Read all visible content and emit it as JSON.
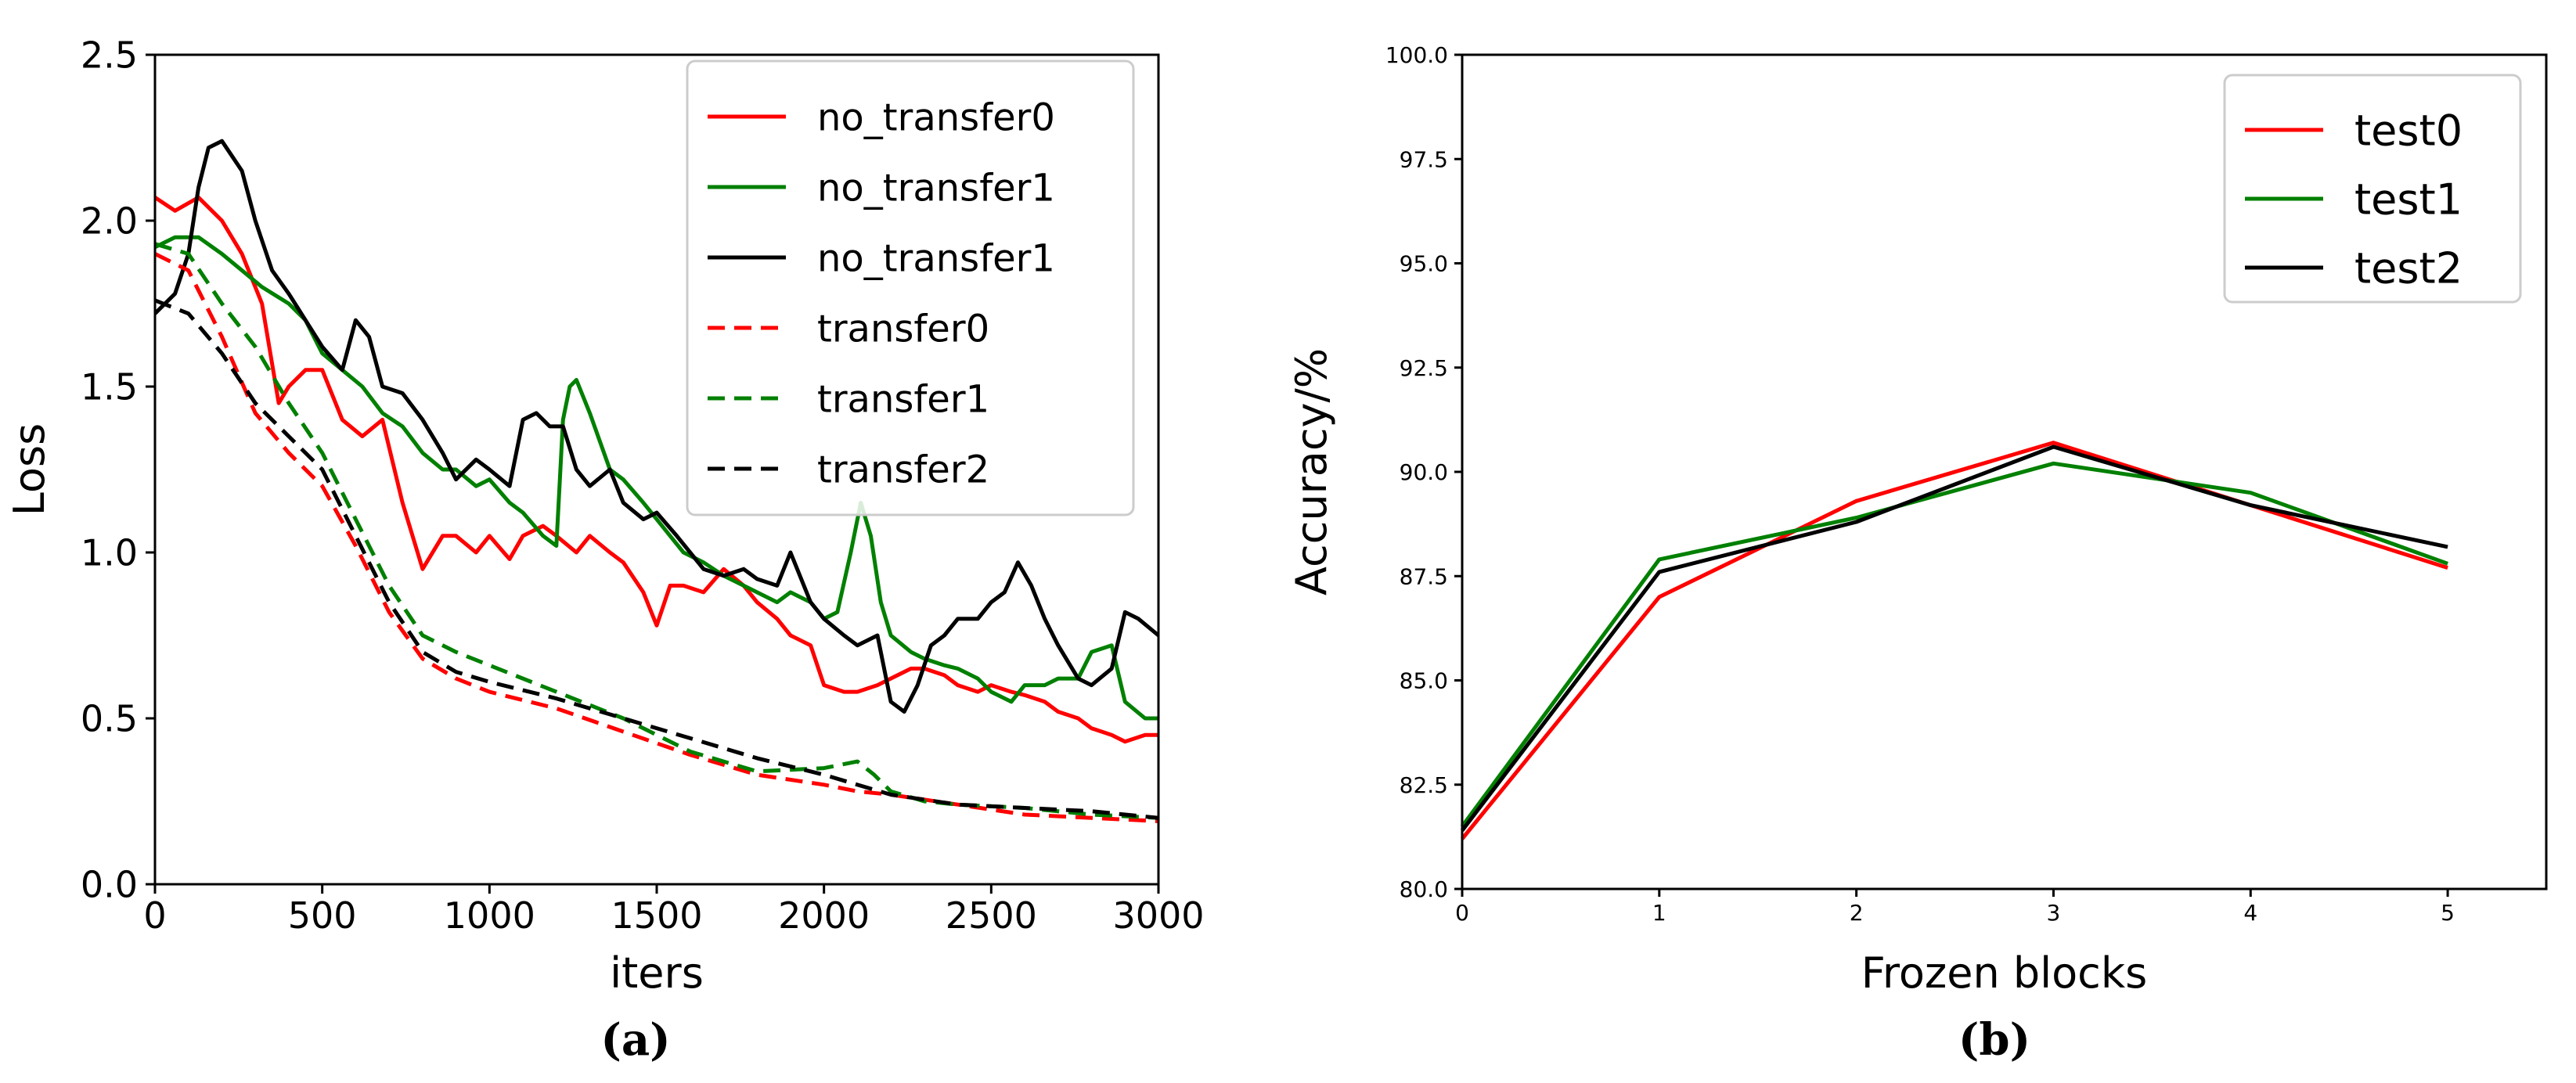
{
  "chart_data": [
    {
      "type": "line",
      "panel_label": "(a)",
      "xlabel": "iters",
      "ylabel": "Loss",
      "xlim": [
        0,
        3000
      ],
      "ylim": [
        0.0,
        2.5
      ],
      "xticks": [
        "0",
        "500",
        "1000",
        "1500",
        "2000",
        "2500",
        "3000"
      ],
      "yticks": [
        "0.0",
        "0.5",
        "1.0",
        "1.5",
        "2.0",
        "2.5"
      ],
      "grid": false,
      "legend_position": "top-right",
      "series": [
        {
          "name": "no_transfer0",
          "color": "#ff0000",
          "dash": "solid",
          "x": [
            0,
            60,
            130,
            200,
            260,
            320,
            370,
            400,
            450,
            500,
            560,
            620,
            680,
            740,
            800,
            860,
            900,
            960,
            1000,
            1060,
            1100,
            1160,
            1200,
            1260,
            1300,
            1360,
            1400,
            1460,
            1500,
            1540,
            1580,
            1640,
            1700,
            1760,
            1800,
            1860,
            1900,
            1960,
            2000,
            2060,
            2100,
            2160,
            2200,
            2260,
            2300,
            2360,
            2400,
            2460,
            2500,
            2560,
            2600,
            2660,
            2700,
            2760,
            2800,
            2860,
            2900,
            2960,
            3000
          ],
          "y": [
            2.07,
            2.03,
            2.07,
            2.0,
            1.9,
            1.75,
            1.45,
            1.5,
            1.55,
            1.55,
            1.4,
            1.35,
            1.4,
            1.15,
            0.95,
            1.05,
            1.05,
            1.0,
            1.05,
            0.98,
            1.05,
            1.08,
            1.05,
            1.0,
            1.05,
            1.0,
            0.97,
            0.88,
            0.78,
            0.9,
            0.9,
            0.88,
            0.95,
            0.9,
            0.85,
            0.8,
            0.75,
            0.72,
            0.6,
            0.58,
            0.58,
            0.6,
            0.62,
            0.65,
            0.65,
            0.63,
            0.6,
            0.58,
            0.6,
            0.58,
            0.57,
            0.55,
            0.52,
            0.5,
            0.47,
            0.45,
            0.43,
            0.45,
            0.45
          ]
        },
        {
          "name": "no_transfer1",
          "color": "#008000",
          "dash": "solid",
          "x": [
            0,
            60,
            130,
            200,
            260,
            320,
            400,
            450,
            500,
            560,
            620,
            680,
            740,
            800,
            860,
            900,
            960,
            1000,
            1060,
            1100,
            1160,
            1200,
            1220,
            1240,
            1260,
            1300,
            1360,
            1400,
            1460,
            1500,
            1540,
            1580,
            1640,
            1700,
            1760,
            1800,
            1860,
            1900,
            1960,
            2000,
            2040,
            2080,
            2110,
            2140,
            2170,
            2200,
            2260,
            2300,
            2360,
            2400,
            2460,
            2500,
            2560,
            2600,
            2660,
            2700,
            2760,
            2800,
            2860,
            2900,
            2960,
            3000
          ],
          "y": [
            1.92,
            1.95,
            1.95,
            1.9,
            1.85,
            1.8,
            1.75,
            1.7,
            1.6,
            1.55,
            1.5,
            1.42,
            1.38,
            1.3,
            1.25,
            1.25,
            1.2,
            1.22,
            1.15,
            1.12,
            1.05,
            1.02,
            1.4,
            1.5,
            1.52,
            1.42,
            1.25,
            1.22,
            1.15,
            1.1,
            1.05,
            1.0,
            0.97,
            0.93,
            0.9,
            0.88,
            0.85,
            0.88,
            0.85,
            0.8,
            0.82,
            1.0,
            1.15,
            1.05,
            0.85,
            0.75,
            0.7,
            0.68,
            0.66,
            0.65,
            0.62,
            0.58,
            0.55,
            0.6,
            0.6,
            0.62,
            0.62,
            0.7,
            0.72,
            0.55,
            0.5,
            0.5
          ]
        },
        {
          "name": "no_transfer1",
          "color": "#000000",
          "dash": "solid",
          "x": [
            0,
            60,
            100,
            130,
            160,
            200,
            260,
            300,
            350,
            400,
            450,
            500,
            560,
            600,
            640,
            680,
            740,
            800,
            860,
            900,
            960,
            1000,
            1060,
            1100,
            1140,
            1180,
            1220,
            1260,
            1300,
            1360,
            1400,
            1460,
            1500,
            1560,
            1600,
            1640,
            1700,
            1760,
            1800,
            1860,
            1900,
            1960,
            2000,
            2060,
            2100,
            2160,
            2200,
            2240,
            2280,
            2320,
            2360,
            2400,
            2460,
            2500,
            2540,
            2580,
            2620,
            2660,
            2700,
            2760,
            2800,
            2860,
            2900,
            2940,
            3000
          ],
          "y": [
            1.72,
            1.78,
            1.9,
            2.1,
            2.22,
            2.24,
            2.15,
            2.0,
            1.85,
            1.78,
            1.7,
            1.62,
            1.55,
            1.7,
            1.65,
            1.5,
            1.48,
            1.4,
            1.3,
            1.22,
            1.28,
            1.25,
            1.2,
            1.4,
            1.42,
            1.38,
            1.38,
            1.25,
            1.2,
            1.25,
            1.15,
            1.1,
            1.12,
            1.05,
            1.0,
            0.95,
            0.93,
            0.95,
            0.92,
            0.9,
            1.0,
            0.85,
            0.8,
            0.75,
            0.72,
            0.75,
            0.55,
            0.52,
            0.6,
            0.72,
            0.75,
            0.8,
            0.8,
            0.85,
            0.88,
            0.97,
            0.9,
            0.8,
            0.72,
            0.62,
            0.6,
            0.65,
            0.82,
            0.8,
            0.75
          ]
        },
        {
          "name": "transfer0",
          "color": "#ff0000",
          "dash": "dashed",
          "x": [
            0,
            100,
            200,
            300,
            400,
            500,
            600,
            700,
            800,
            900,
            1000,
            1200,
            1400,
            1600,
            1800,
            2000,
            2100,
            2200,
            2400,
            2600,
            2800,
            3000
          ],
          "y": [
            1.9,
            1.85,
            1.65,
            1.42,
            1.3,
            1.2,
            1.02,
            0.82,
            0.68,
            0.62,
            0.58,
            0.53,
            0.46,
            0.39,
            0.33,
            0.3,
            0.28,
            0.27,
            0.24,
            0.21,
            0.2,
            0.19
          ]
        },
        {
          "name": "transfer1",
          "color": "#008000",
          "dash": "dashed",
          "x": [
            0,
            100,
            200,
            300,
            400,
            500,
            600,
            700,
            800,
            900,
            1000,
            1200,
            1400,
            1600,
            1800,
            2000,
            2100,
            2150,
            2200,
            2300,
            2400,
            2600,
            2800,
            3000
          ],
          "y": [
            1.93,
            1.9,
            1.75,
            1.62,
            1.45,
            1.3,
            1.1,
            0.9,
            0.75,
            0.7,
            0.66,
            0.58,
            0.5,
            0.4,
            0.34,
            0.35,
            0.37,
            0.33,
            0.28,
            0.25,
            0.24,
            0.23,
            0.21,
            0.2
          ]
        },
        {
          "name": "transfer2",
          "color": "#000000",
          "dash": "dashed",
          "x": [
            0,
            100,
            200,
            300,
            400,
            500,
            600,
            700,
            800,
            900,
            1000,
            1200,
            1400,
            1600,
            1800,
            2000,
            2200,
            2400,
            2600,
            2800,
            3000
          ],
          "y": [
            1.76,
            1.72,
            1.6,
            1.45,
            1.35,
            1.25,
            1.05,
            0.85,
            0.7,
            0.64,
            0.61,
            0.56,
            0.5,
            0.44,
            0.38,
            0.33,
            0.27,
            0.24,
            0.23,
            0.22,
            0.2
          ]
        }
      ]
    },
    {
      "type": "line",
      "panel_label": "(b)",
      "xlabel": "Frozen blocks",
      "ylabel": "Accuracy/%",
      "xlim": [
        0,
        5.5
      ],
      "ylim": [
        80.0,
        100.0
      ],
      "xticks": [
        "0",
        "1",
        "2",
        "3",
        "4",
        "5"
      ],
      "yticks": [
        "80.0",
        "82.5",
        "85.0",
        "87.5",
        "90.0",
        "92.5",
        "95.0",
        "97.5",
        "100.0"
      ],
      "grid": false,
      "legend_position": "top-right",
      "series": [
        {
          "name": "test0",
          "color": "#ff0000",
          "x": [
            0,
            1,
            2,
            3,
            4,
            5
          ],
          "y": [
            81.2,
            87.0,
            89.3,
            90.7,
            89.2,
            87.7
          ]
        },
        {
          "name": "test1",
          "color": "#008000",
          "x": [
            0,
            1,
            2,
            3,
            4,
            5
          ],
          "y": [
            81.5,
            87.9,
            88.9,
            90.2,
            89.5,
            87.8
          ]
        },
        {
          "name": "test2",
          "color": "#000000",
          "x": [
            0,
            1,
            2,
            3,
            4,
            5
          ],
          "y": [
            81.4,
            87.6,
            88.8,
            90.6,
            89.2,
            88.2
          ]
        }
      ]
    }
  ]
}
